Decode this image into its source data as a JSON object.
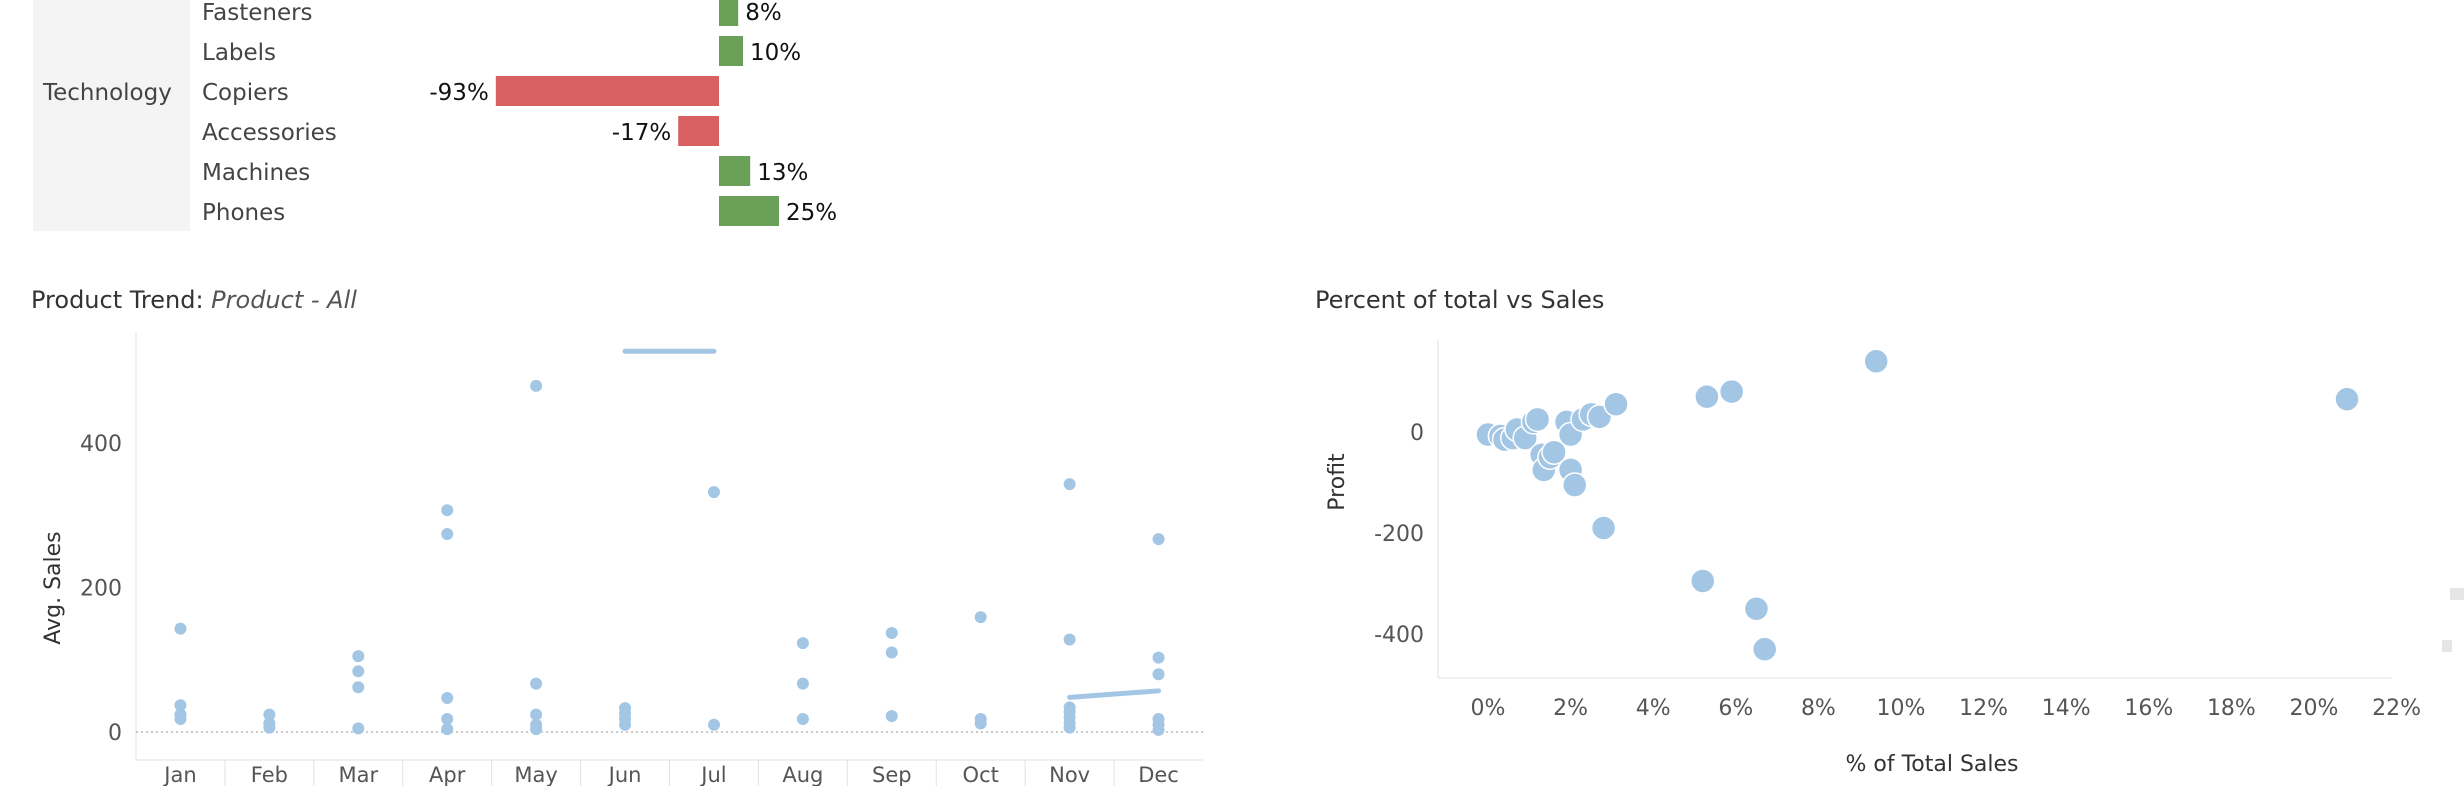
{
  "chart_data": [
    {
      "type": "bar",
      "title": "",
      "groups": [
        {
          "category": "",
          "items": [
            {
              "sub_category": "Fasteners",
              "value": 8,
              "label": "8%"
            },
            {
              "sub_category": "Labels",
              "value": 10,
              "label": "10%"
            }
          ]
        },
        {
          "category": "Technology",
          "items": [
            {
              "sub_category": "Copiers",
              "value": -93,
              "label": "-93%"
            },
            {
              "sub_category": "Accessories",
              "value": -17,
              "label": "-17%"
            },
            {
              "sub_category": "Machines",
              "value": 13,
              "label": "13%"
            },
            {
              "sub_category": "Phones",
              "value": 25,
              "label": "25%"
            }
          ]
        }
      ],
      "colors": {
        "positive": "#6a9f58",
        "negative": "#d96060",
        "header_bg": "#f4f4f4"
      }
    },
    {
      "type": "scatter",
      "title": "Product Trend:",
      "subtitle": "Product - All",
      "xlabel": "",
      "ylabel": "Avg. Sales",
      "categories": [
        "Jan",
        "Feb",
        "Mar",
        "Apr",
        "May",
        "Jun",
        "Jul",
        "Aug",
        "Sep",
        "Oct",
        "Nov",
        "Dec"
      ],
      "y_ticks": [
        "0",
        "200",
        "400"
      ],
      "ylim": [
        0,
        530
      ],
      "points": [
        {
          "x": "Jan",
          "y": 143
        },
        {
          "x": "Jan",
          "y": 37
        },
        {
          "x": "Jan",
          "y": 24
        },
        {
          "x": "Jan",
          "y": 18
        },
        {
          "x": "Feb",
          "y": 24
        },
        {
          "x": "Feb",
          "y": 12
        },
        {
          "x": "Feb",
          "y": 6
        },
        {
          "x": "Mar",
          "y": 105
        },
        {
          "x": "Mar",
          "y": 84
        },
        {
          "x": "Mar",
          "y": 62
        },
        {
          "x": "Mar",
          "y": 5
        },
        {
          "x": "Apr",
          "y": 307
        },
        {
          "x": "Apr",
          "y": 274
        },
        {
          "x": "Apr",
          "y": 47
        },
        {
          "x": "Apr",
          "y": 18
        },
        {
          "x": "Apr",
          "y": 4
        },
        {
          "x": "May",
          "y": 479
        },
        {
          "x": "May",
          "y": 67
        },
        {
          "x": "May",
          "y": 24
        },
        {
          "x": "May",
          "y": 10
        },
        {
          "x": "May",
          "y": 4
        },
        {
          "x": "Jun",
          "y": 33
        },
        {
          "x": "Jun",
          "y": 26
        },
        {
          "x": "Jun",
          "y": 18
        },
        {
          "x": "Jun",
          "y": 10
        },
        {
          "x": "Jul",
          "y": 332
        },
        {
          "x": "Jul",
          "y": 10
        },
        {
          "x": "Aug",
          "y": 123
        },
        {
          "x": "Aug",
          "y": 67
        },
        {
          "x": "Aug",
          "y": 18
        },
        {
          "x": "Sep",
          "y": 137
        },
        {
          "x": "Sep",
          "y": 110
        },
        {
          "x": "Sep",
          "y": 22
        },
        {
          "x": "Oct",
          "y": 159
        },
        {
          "x": "Oct",
          "y": 18
        },
        {
          "x": "Oct",
          "y": 12
        },
        {
          "x": "Nov",
          "y": 343
        },
        {
          "x": "Nov",
          "y": 128
        },
        {
          "x": "Nov",
          "y": 34
        },
        {
          "x": "Nov",
          "y": 28
        },
        {
          "x": "Nov",
          "y": 20
        },
        {
          "x": "Nov",
          "y": 12
        },
        {
          "x": "Nov",
          "y": 6
        },
        {
          "x": "Dec",
          "y": 267
        },
        {
          "x": "Dec",
          "y": 103
        },
        {
          "x": "Dec",
          "y": 80
        },
        {
          "x": "Dec",
          "y": 18
        },
        {
          "x": "Dec",
          "y": 10
        },
        {
          "x": "Dec",
          "y": 3
        }
      ],
      "trend_lines": [
        {
          "from": {
            "x": "Jun",
            "y": 527
          },
          "to": {
            "x": "Jul",
            "y": 527
          }
        },
        {
          "from": {
            "x": "Nov",
            "y": 48
          },
          "to": {
            "x": "Dec",
            "y": 57
          }
        }
      ],
      "color": "#a2c6e4",
      "grid": false
    },
    {
      "type": "scatter",
      "title": "Percent of total vs Sales",
      "xlabel": "% of Total Sales",
      "ylabel": "Profit",
      "x_ticks": [
        "0%",
        "2%",
        "4%",
        "6%",
        "8%",
        "10%",
        "12%",
        "14%",
        "16%",
        "18%",
        "20%",
        "22%"
      ],
      "y_ticks": [
        "0",
        "-200",
        "-400"
      ],
      "xlim": [
        -1.2,
        22.3
      ],
      "ylim": [
        -490,
        170
      ],
      "points": [
        {
          "x": 0.0,
          "y": -5
        },
        {
          "x": 0.3,
          "y": -8
        },
        {
          "x": 0.4,
          "y": -15
        },
        {
          "x": 0.6,
          "y": -12
        },
        {
          "x": 0.7,
          "y": 5
        },
        {
          "x": 0.9,
          "y": -12
        },
        {
          "x": 1.1,
          "y": 20
        },
        {
          "x": 1.2,
          "y": 25
        },
        {
          "x": 1.3,
          "y": -45
        },
        {
          "x": 1.35,
          "y": -75
        },
        {
          "x": 1.5,
          "y": -50
        },
        {
          "x": 1.6,
          "y": -40
        },
        {
          "x": 1.9,
          "y": 20
        },
        {
          "x": 2.0,
          "y": -5
        },
        {
          "x": 2.0,
          "y": -75
        },
        {
          "x": 2.1,
          "y": -105
        },
        {
          "x": 2.3,
          "y": 25
        },
        {
          "x": 2.5,
          "y": 35
        },
        {
          "x": 2.7,
          "y": 30
        },
        {
          "x": 2.8,
          "y": -190
        },
        {
          "x": 3.1,
          "y": 55
        },
        {
          "x": 5.2,
          "y": -295
        },
        {
          "x": 5.3,
          "y": 70
        },
        {
          "x": 5.9,
          "y": 80
        },
        {
          "x": 6.5,
          "y": -350
        },
        {
          "x": 6.7,
          "y": -430
        },
        {
          "x": 9.4,
          "y": 140
        },
        {
          "x": 20.8,
          "y": 65
        }
      ],
      "color": "#a2c6e4",
      "grid": false
    }
  ]
}
